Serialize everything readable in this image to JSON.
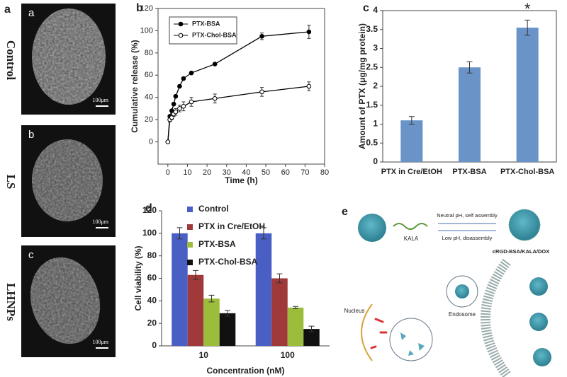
{
  "chart_data": [
    {
      "type": "line",
      "label": "b",
      "xlabel": "Time (h)",
      "ylabel": "Cumulative release (%)",
      "x": [
        0,
        1,
        2,
        3,
        4,
        6,
        8,
        12,
        24,
        48,
        72
      ],
      "series": [
        {
          "name": "PTX-BSA",
          "color": "#000000",
          "marker": "filled",
          "values": [
            0,
            23,
            28,
            34,
            41,
            50,
            57,
            62,
            70,
            95,
            99
          ],
          "errors": [
            0,
            1,
            1,
            1,
            1,
            1,
            1,
            1,
            1,
            3,
            6
          ]
        },
        {
          "name": "PTX-Chol-BSA",
          "color": "#000000",
          "marker": "open",
          "values": [
            0,
            20,
            22,
            25,
            27,
            30,
            32,
            36,
            39,
            45,
            50
          ],
          "errors": [
            0,
            2,
            2,
            2,
            3,
            3,
            4,
            4,
            4,
            4,
            4
          ]
        }
      ],
      "xlim": [
        -5,
        80
      ],
      "xticks": [
        0,
        10,
        20,
        30,
        40,
        50,
        60,
        70,
        80
      ],
      "ylim": [
        -20,
        120
      ],
      "yticks": [
        0,
        20,
        40,
        60,
        80,
        100,
        120
      ],
      "box": true,
      "legend": "upper-left"
    },
    {
      "type": "bar",
      "label": "c",
      "ylabel": "Amount of PTX (μg/mg protein)",
      "categories": [
        "PTX in Cre/EtOH",
        "PTX-BSA",
        "PTX-Chol-BSA"
      ],
      "values": [
        1.1,
        2.5,
        3.55
      ],
      "errors": [
        0.1,
        0.15,
        0.2
      ],
      "color": "#6a94c8",
      "annotations": [
        {
          "text": "*",
          "category": 2
        }
      ],
      "ylim": [
        0,
        4
      ],
      "yticks": [
        0,
        0.5,
        1,
        1.5,
        2,
        2.5,
        3,
        3.5,
        4
      ],
      "box": true
    },
    {
      "type": "bar",
      "label": "d",
      "xlabel": "Concentration (nM)",
      "ylabel": "Cell viability (%)",
      "categories": [
        "10",
        "100"
      ],
      "series": [
        {
          "name": "Control",
          "color": "#4a5fc4",
          "values": [
            100,
            100
          ],
          "errors": [
            5,
            5
          ]
        },
        {
          "name": "PTX in Cre/EtOH",
          "color": "#a0393a",
          "values": [
            63,
            60
          ],
          "errors": [
            4,
            4
          ]
        },
        {
          "name": "PTX-BSA",
          "color": "#9cbc3c",
          "values": [
            42,
            34
          ],
          "errors": [
            3,
            1
          ]
        },
        {
          "name": "PTX-Chol-BSA",
          "color": "#111111",
          "values": [
            29,
            15
          ],
          "errors": [
            2.5,
            2.5
          ]
        }
      ],
      "ylim": [
        0,
        120
      ],
      "yticks": [
        0,
        20,
        40,
        60,
        80,
        100,
        120
      ],
      "box": false,
      "legend": "upper-left"
    }
  ],
  "images": {
    "label": "a",
    "panels": [
      {
        "label": "a",
        "row_label": "Control",
        "scale": "100μm"
      },
      {
        "label": "b",
        "row_label": "LS",
        "scale": "100μm"
      },
      {
        "label": "c",
        "row_label": "LHNPs",
        "scale": "100μm"
      }
    ]
  },
  "diagram": {
    "label": "e",
    "kala": "KALA",
    "forward": "Neutral pH, self assembly",
    "backward": "Low pH, disassembly",
    "complex": "cRGD-BSA/KALA/DOX",
    "nucleus": "Nucleus",
    "endosome": "Endosome"
  }
}
